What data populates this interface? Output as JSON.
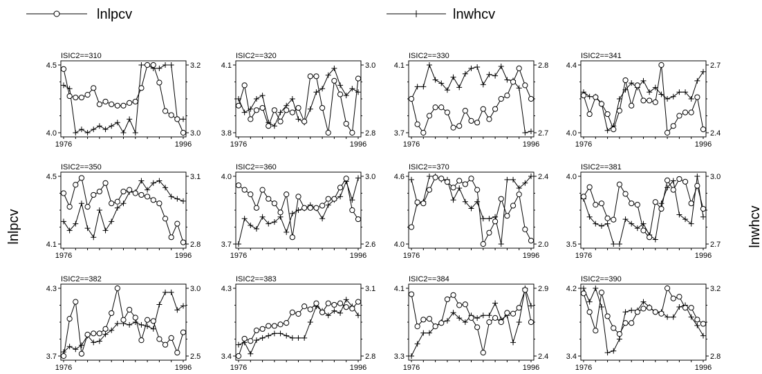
{
  "legend": [
    {
      "label": "lnlpcv",
      "marker": "circle"
    },
    {
      "label": "lnwhcv",
      "marker": "plus"
    }
  ],
  "axis_labels": {
    "left": "lnlpcv",
    "right": "lnwhcv"
  },
  "chart_data": {
    "type": "line",
    "x": [
      1976,
      1977,
      1978,
      1979,
      1980,
      1981,
      1982,
      1983,
      1984,
      1985,
      1986,
      1987,
      1988,
      1989,
      1990,
      1991,
      1992,
      1993,
      1994,
      1995,
      1996
    ],
    "x_ticks": [
      "1976",
      "1996"
    ],
    "grid": false,
    "legend_placement": "top",
    "panels": [
      {
        "title": "ISIC2==310",
        "left_ticks": [
          "4.5",
          "4.0"
        ],
        "right_ticks": [
          "3.2",
          "3.0"
        ],
        "left_range": [
          4.0,
          4.5
        ],
        "right_range": [
          3.0,
          3.2
        ],
        "lnlpcv": [
          4.47,
          4.27,
          4.26,
          4.26,
          4.28,
          4.33,
          4.21,
          4.23,
          4.21,
          4.2,
          4.2,
          4.22,
          4.23,
          4.33,
          4.5,
          4.5,
          4.37,
          4.16,
          4.13,
          4.1,
          4.0
        ],
        "lnwhcv": [
          3.14,
          3.13,
          3.0,
          3.01,
          3.0,
          3.01,
          3.02,
          3.01,
          3.02,
          3.03,
          3.0,
          3.04,
          3.0,
          3.2,
          3.2,
          3.19,
          3.19,
          3.2,
          3.2,
          3.04,
          3.04
        ]
      },
      {
        "title": "ISIC2==320",
        "left_ticks": [
          "4.1",
          "3.8"
        ],
        "right_ticks": [
          "3.0",
          "2.8"
        ],
        "left_range": [
          3.8,
          4.1
        ],
        "right_range": [
          2.8,
          3.0
        ],
        "lnlpcv": [
          3.92,
          4.01,
          3.86,
          3.9,
          3.91,
          3.83,
          3.9,
          3.85,
          3.9,
          3.89,
          3.91,
          3.85,
          4.05,
          4.05,
          3.91,
          3.8,
          4.03,
          3.97,
          3.84,
          3.8,
          4.04
        ],
        "lnwhcv": [
          2.9,
          2.86,
          2.87,
          2.9,
          2.91,
          2.83,
          2.82,
          2.86,
          2.88,
          2.9,
          2.84,
          2.83,
          2.87,
          2.92,
          2.93,
          2.97,
          2.99,
          2.94,
          2.91,
          2.93,
          2.92
        ]
      },
      {
        "title": "ISIC2==330",
        "left_ticks": [
          "4.1",
          "3.7"
        ],
        "right_ticks": [
          "2.8",
          "2.7"
        ],
        "left_range": [
          3.7,
          4.1
        ],
        "right_range": [
          2.7,
          2.8
        ],
        "lnlpcv": [
          3.9,
          3.75,
          3.7,
          3.8,
          3.85,
          3.85,
          3.82,
          3.73,
          3.74,
          3.83,
          3.77,
          3.76,
          3.84,
          3.78,
          3.84,
          3.9,
          3.92,
          4.0,
          4.08,
          3.98,
          3.9
        ],
        "lnwhcv": [
          2.75,
          2.768,
          2.768,
          2.8,
          2.778,
          2.773,
          2.763,
          2.782,
          2.767,
          2.787,
          2.795,
          2.797,
          2.771,
          2.786,
          2.784,
          2.798,
          2.778,
          2.777,
          2.766,
          2.7,
          2.702
        ]
      },
      {
        "title": "ISIC2==341",
        "left_ticks": [
          "4.4",
          "4.0"
        ],
        "right_ticks": [
          "2.7",
          "2.4"
        ],
        "left_range": [
          4.0,
          4.4
        ],
        "right_range": [
          2.4,
          2.7
        ],
        "lnlpcv": [
          4.22,
          4.11,
          4.21,
          4.17,
          4.11,
          4.02,
          4.13,
          4.31,
          4.16,
          4.28,
          4.19,
          4.19,
          4.18,
          4.4,
          4.0,
          4.04,
          4.1,
          4.12,
          4.12,
          4.21,
          4.02
        ],
        "lnwhcv": [
          2.58,
          2.56,
          2.56,
          2.53,
          2.41,
          2.43,
          2.55,
          2.59,
          2.62,
          2.6,
          2.63,
          2.58,
          2.6,
          2.57,
          2.55,
          2.56,
          2.58,
          2.58,
          2.55,
          2.63,
          2.67
        ]
      },
      {
        "title": "ISIC2==350",
        "left_ticks": [
          "4.5",
          "4.1"
        ],
        "right_ticks": [
          "3.1",
          "2.8"
        ],
        "left_range": [
          4.1,
          4.5
        ],
        "right_range": [
          2.8,
          3.1
        ],
        "lnlpcv": [
          4.4,
          4.32,
          4.45,
          4.49,
          4.32,
          4.39,
          4.41,
          4.46,
          4.34,
          4.35,
          4.41,
          4.42,
          4.4,
          4.39,
          4.38,
          4.36,
          4.34,
          4.25,
          4.14,
          4.22,
          4.11
        ],
        "lnwhcv": [
          2.9,
          2.86,
          2.89,
          2.98,
          2.87,
          2.83,
          2.95,
          2.86,
          2.9,
          2.96,
          2.98,
          3.03,
          3.03,
          3.08,
          3.04,
          3.07,
          3.08,
          3.05,
          3.01,
          3.0,
          2.99
        ]
      },
      {
        "title": "ISIC2==360",
        "left_ticks": [
          "4.0",
          "3.7"
        ],
        "right_ticks": [
          "3.0",
          "2.6"
        ],
        "left_range": [
          3.7,
          4.0
        ],
        "right_range": [
          2.6,
          3.0
        ],
        "lnlpcv": [
          3.96,
          3.94,
          3.92,
          3.86,
          3.94,
          3.9,
          3.88,
          3.84,
          3.92,
          3.73,
          3.91,
          3.86,
          3.86,
          3.86,
          3.87,
          3.9,
          3.9,
          3.95,
          3.99,
          3.85,
          3.81
        ],
        "lnwhcv": [
          2.6,
          2.75,
          2.71,
          2.69,
          2.76,
          2.72,
          2.73,
          2.76,
          2.67,
          2.78,
          2.8,
          2.81,
          2.83,
          2.81,
          2.75,
          2.83,
          2.86,
          2.88,
          2.97,
          2.86,
          2.99
        ]
      },
      {
        "title": "ISIC2==370",
        "left_ticks": [
          "4.6",
          "4.0"
        ],
        "right_ticks": [
          "2.4",
          "2.0"
        ],
        "left_range": [
          4.0,
          4.6
        ],
        "right_range": [
          2.0,
          2.4
        ],
        "lnlpcv": [
          4.15,
          4.37,
          4.36,
          4.48,
          4.59,
          4.58,
          4.55,
          4.5,
          4.56,
          4.53,
          4.58,
          4.48,
          4.0,
          4.1,
          4.2,
          4.4,
          4.25,
          4.34,
          4.44,
          4.13,
          4.03
        ],
        "lnwhcv": [
          2.38,
          2.24,
          2.25,
          2.4,
          2.4,
          2.38,
          2.38,
          2.26,
          2.33,
          2.25,
          2.21,
          2.25,
          2.15,
          2.15,
          2.16,
          2.0,
          2.38,
          2.38,
          2.33,
          2.36,
          2.4
        ]
      },
      {
        "title": "ISIC2==381",
        "left_ticks": [
          "4.0",
          "3.5"
        ],
        "right_ticks": [
          "3.0",
          "2.7"
        ],
        "left_range": [
          3.5,
          4.0
        ],
        "right_range": [
          2.7,
          3.0
        ],
        "lnlpcv": [
          3.85,
          3.92,
          3.79,
          3.8,
          3.69,
          3.68,
          3.94,
          3.87,
          3.8,
          3.79,
          3.6,
          3.55,
          3.81,
          3.76,
          3.97,
          3.9,
          3.98,
          3.96,
          3.8,
          3.93,
          3.76
        ],
        "lnwhcv": [
          2.9,
          2.82,
          2.79,
          2.78,
          2.79,
          2.7,
          2.7,
          2.81,
          2.79,
          2.77,
          2.79,
          2.74,
          2.72,
          2.88,
          2.95,
          2.98,
          2.83,
          2.81,
          2.79,
          3.0,
          2.82
        ]
      },
      {
        "title": "ISIC2==382",
        "left_ticks": [
          "4.3",
          "3.7"
        ],
        "right_ticks": [
          "3.0",
          "2.5"
        ],
        "left_range": [
          3.7,
          4.3
        ],
        "right_range": [
          2.5,
          3.0
        ],
        "lnlpcv": [
          3.7,
          4.03,
          4.18,
          3.72,
          3.89,
          3.9,
          3.9,
          3.94,
          4.08,
          4.3,
          4.02,
          4.11,
          4.04,
          3.84,
          4.02,
          4.01,
          3.85,
          3.8,
          3.86,
          3.73,
          3.91
        ],
        "lnwhcv": [
          2.53,
          2.57,
          2.55,
          2.58,
          2.65,
          2.6,
          2.61,
          2.66,
          2.69,
          2.74,
          2.74,
          2.73,
          2.75,
          2.73,
          2.72,
          2.7,
          2.88,
          2.97,
          2.97,
          2.84,
          2.87
        ]
      },
      {
        "title": "ISIC2==383",
        "left_ticks": [
          "4.3",
          "3.4"
        ],
        "right_ticks": [
          "3.1",
          "2.8"
        ],
        "left_range": [
          3.4,
          4.3
        ],
        "right_range": [
          2.8,
          3.1
        ],
        "lnlpcv": [
          3.4,
          3.63,
          3.6,
          3.74,
          3.76,
          3.8,
          3.8,
          3.82,
          3.84,
          3.98,
          3.96,
          4.06,
          4.02,
          4.1,
          3.98,
          4.1,
          4.08,
          4.1,
          4.05,
          4.03,
          4.12
        ],
        "lnwhcv": [
          2.85,
          2.86,
          2.81,
          2.87,
          2.88,
          2.89,
          2.9,
          2.9,
          2.89,
          2.88,
          2.88,
          2.88,
          2.95,
          3.02,
          3.0,
          2.98,
          3.0,
          2.99,
          3.05,
          3.02,
          2.98
        ]
      },
      {
        "title": "ISIC2==384",
        "left_ticks": [
          "4.1",
          "3.3"
        ],
        "right_ticks": [
          "2.9",
          "2.4"
        ],
        "left_range": [
          3.3,
          4.1
        ],
        "right_range": [
          2.4,
          2.9
        ],
        "lnlpcv": [
          4.03,
          3.65,
          3.73,
          3.74,
          3.65,
          3.69,
          3.97,
          4.02,
          3.9,
          3.91,
          3.75,
          3.64,
          3.34,
          3.7,
          3.75,
          3.7,
          3.81,
          3.8,
          3.87,
          4.08,
          3.7
        ],
        "lnwhcv": [
          2.4,
          2.49,
          2.57,
          2.57,
          2.62,
          2.65,
          2.66,
          2.72,
          2.68,
          2.65,
          2.7,
          2.68,
          2.7,
          2.7,
          2.79,
          2.67,
          2.7,
          2.5,
          2.65,
          2.9,
          2.77
        ]
      },
      {
        "title": "ISIC2==390",
        "left_ticks": [
          "4.2",
          "3.4"
        ],
        "right_ticks": [
          "3.2",
          "2.8"
        ],
        "left_range": [
          3.4,
          4.2
        ],
        "right_range": [
          2.8,
          3.2
        ],
        "lnlpcv": [
          4.14,
          3.92,
          3.7,
          4.15,
          3.87,
          3.73,
          3.66,
          3.79,
          3.79,
          3.92,
          3.96,
          3.97,
          3.92,
          3.9,
          4.2,
          4.08,
          4.1,
          3.97,
          3.97,
          3.83,
          3.78
        ],
        "lnwhcv": [
          3.2,
          3.12,
          3.2,
          3.09,
          2.82,
          2.83,
          2.9,
          3.06,
          3.07,
          3.07,
          3.12,
          3.09,
          3.06,
          3.06,
          3.03,
          3.03,
          3.09,
          3.1,
          3.03,
          2.98,
          2.92
        ]
      }
    ]
  }
}
